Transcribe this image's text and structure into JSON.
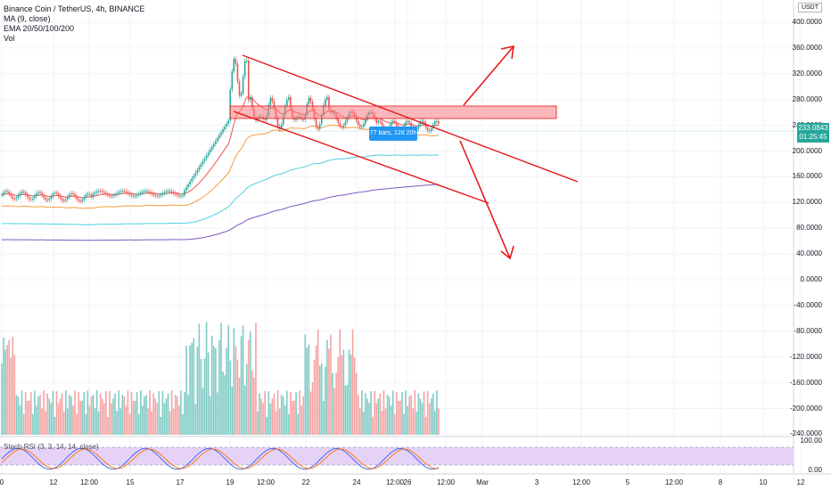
{
  "legend": {
    "title": "Binance Coin / TetherUS, 4h, BINANCE",
    "ma": "MA (9, close)",
    "ema": "EMA 20/50/100/200",
    "vol": "Vol"
  },
  "currency": "USDT",
  "price_axis": [
    "400.0000",
    "360.0000",
    "320.0000",
    "280.0000",
    "240.0000",
    "200.0000",
    "160.0000",
    "120.0000",
    "80.0000",
    "40.0000",
    "0.0000",
    "-40.0000",
    "-80.0000",
    "-120.0000",
    "-160.0000",
    "-200.0000",
    "-240.0000"
  ],
  "rsi_axis": [
    "100.00",
    "0.00"
  ],
  "last_price": "233.0843",
  "countdown": "01:25:45",
  "measure_label": "77 bars, 12d 20h",
  "indicator": "Stoch RSI (3, 3, 14, 14, close)",
  "time_axis": [
    "0",
    "12",
    "12:00",
    "15",
    "17",
    "19",
    "12:00",
    "22",
    "24",
    "12:00",
    "26",
    "12:00",
    "Mar",
    "3",
    "12:00",
    "5",
    "12:00",
    "8",
    "10",
    "12"
  ],
  "colors": {
    "up": "#26a69a",
    "down": "#ef5350",
    "trend": "#e51919",
    "zone": "#f77c80",
    "rsi_band": "#e1c4f7"
  },
  "chart_data": {
    "type": "candlestick",
    "symbol": "Binance Coin / TetherUS",
    "timeframe": "4h",
    "ylim": [
      -250,
      420
    ],
    "resistance_zone": [
      255,
      270
    ],
    "last": 233.0843
  }
}
